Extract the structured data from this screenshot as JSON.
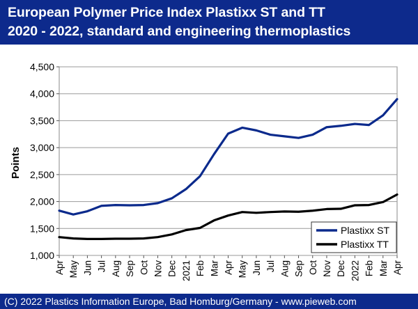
{
  "header": {
    "title_line1": "European Polymer Price Index Plastixx ST and TT",
    "title_line2": "2020 - 2022, standard and engineering thermoplastics"
  },
  "footer": {
    "copyright": "(C) 2022 Plastics Information Europe, Bad Homburg/Germany - www.pieweb.com"
  },
  "colors": {
    "header_bg": "#0d2a8c",
    "series_st": "#0b2a8c",
    "series_tt": "#000000"
  },
  "chart_data": {
    "type": "line",
    "ylabel": "Points",
    "ylim": [
      1000,
      4500
    ],
    "yticks": [
      1000,
      1500,
      2000,
      2500,
      3000,
      3500,
      4000,
      4500
    ],
    "ytick_labels": [
      "1,000",
      "1,500",
      "2,000",
      "2,500",
      "3,000",
      "3,500",
      "4,000",
      "4,500"
    ],
    "grid": "horizontal",
    "legend_position": "bottom-right",
    "categories": [
      "Apr",
      "May",
      "Jun",
      "Jul",
      "Aug",
      "Sep",
      "Oct",
      "Nov",
      "Dec",
      "2021",
      "Feb",
      "Mar",
      "Apr",
      "May",
      "Jun",
      "Jul",
      "Aug",
      "Sep",
      "Oct",
      "Nov",
      "Dec",
      "2022",
      "Feb",
      "Mar",
      "Apr"
    ],
    "series": [
      {
        "name": "Plastixx ST",
        "color": "#0b2a8c",
        "values": [
          1830,
          1760,
          1820,
          1920,
          1935,
          1930,
          1935,
          1970,
          2060,
          2230,
          2470,
          2880,
          3260,
          3370,
          3320,
          3240,
          3210,
          3180,
          3240,
          3380,
          3405,
          3440,
          3420,
          3600,
          3900
        ]
      },
      {
        "name": "Plastixx TT",
        "color": "#000000",
        "values": [
          1340,
          1315,
          1305,
          1305,
          1310,
          1310,
          1315,
          1340,
          1390,
          1470,
          1510,
          1650,
          1740,
          1805,
          1790,
          1805,
          1815,
          1810,
          1830,
          1860,
          1865,
          1930,
          1935,
          1990,
          2130
        ]
      }
    ]
  }
}
